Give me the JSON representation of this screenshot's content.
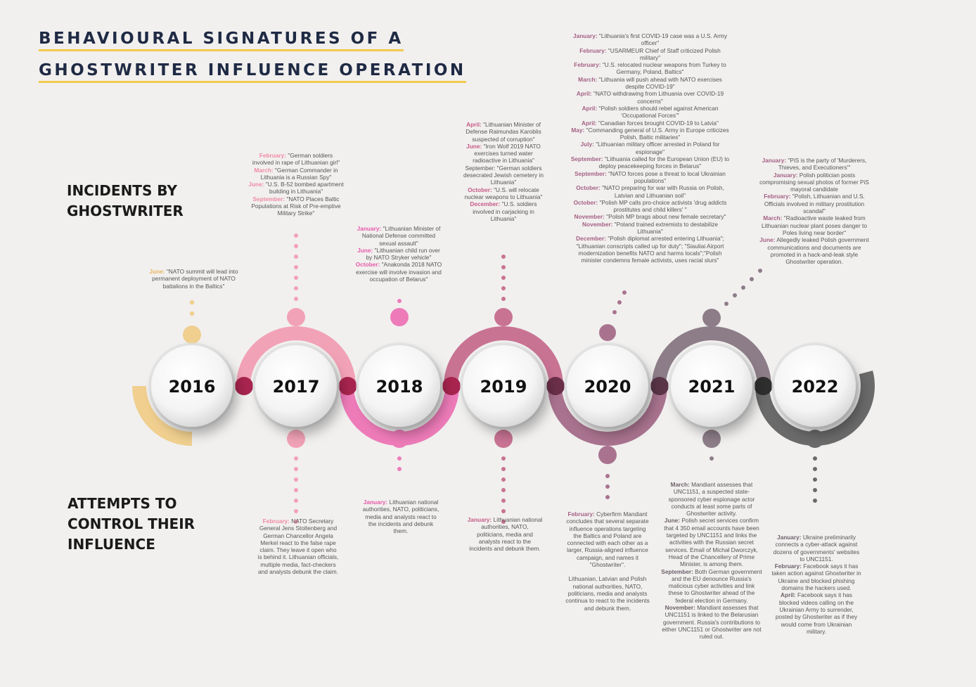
{
  "title": {
    "line1": "BEHAVIOURAL SIGNATURES OF A",
    "line2": "GHOSTWRITER INFLUENCE OPERATION"
  },
  "labels": {
    "incidents": "INCIDENTS BY\nGHOSTWRITER",
    "attempts": "ATTEMPTS TO\nCONTROL THEIR\nINFLUENCE"
  },
  "colors": {
    "2016": "#f0cf8f",
    "2017": "#f2a2b6",
    "2018": "#ee7bb9",
    "2019": "#c97393",
    "2020": "#a9738f",
    "2021": "#8d7d88",
    "2022": "#6a6a6a"
  },
  "years": [
    {
      "year": "2016",
      "incidents": [
        {
          "month": "June:",
          "text": " \"NATO summit will lead into permanent deployment of NATO battalions in the Baltics\""
        }
      ],
      "responses": []
    },
    {
      "year": "2017",
      "incidents": [
        {
          "month": "February:",
          "text": " \"German soldiers involved in rape of Lithuanian girl\""
        },
        {
          "month": "March:",
          "text": " \"German Commander in Lithuania is a Russian Spy\""
        },
        {
          "month": "June:",
          "text": " \"U.S. B-52 bombed apartment building in Lithuania\""
        },
        {
          "month": "September:",
          "text": " \"NATO Places Baltic Populations at Risk of Pre-emptive Military Strike\""
        }
      ],
      "responses": [
        {
          "month": "February:",
          "text": " NATO Secretary General Jens Stoltenberg and German Chancellor Angela Merkel react to the false rape claim. They leave it open who is behind it. Lithuanian officials, multiple media, fact-checkers and analysts debunk the claim."
        }
      ]
    },
    {
      "year": "2018",
      "incidents": [
        {
          "month": "January:",
          "text": " \"Lithuanian Minister of National Defense committed sexual assault\""
        },
        {
          "month": "June:",
          "text": " \"Lithuanian child run over by NATO Stryker vehicle\""
        },
        {
          "month": "October:",
          "text": " \"Anakonda 2018 NATO exercise will involve invasion and occupation of Belarus\""
        }
      ],
      "responses": [
        {
          "month": "January:",
          "text": " Lithuanian national authorities, NATO, politicians, media and analysts react to the incidents and debunk them."
        }
      ]
    },
    {
      "year": "2019",
      "incidents": [
        {
          "month": "April:",
          "text": " \"Lithuanian Minister of Defense Raimundas Karoblis suspected of corruption\""
        },
        {
          "month": "June:",
          "text": " \"Iron Wolf 2019 NATO exercises turned water radioactive in Lithuania\""
        },
        {
          "month": "",
          "text": "September: \"German soldiers desecrated Jewish cemetery in Lithuania\""
        },
        {
          "month": "October:",
          "text": " \"U.S. will relocate nuclear weapons to Lithuania\""
        },
        {
          "month": "December:",
          "text": " \"U.S. soldiers involved in carjacking in Lithuania\""
        }
      ],
      "responses": [
        {
          "month": "January:",
          "text": " Lithuanian national authorities, NATO, politicians, media and analysts react to the incidents and debunk them."
        }
      ]
    },
    {
      "year": "2020",
      "incidents": [
        {
          "month": "January:",
          "text": " \"Lithuania's first COVID-19 case was a U.S. Army officer\""
        },
        {
          "month": "February:",
          "text": " \"USARMEUR Chief of Staff criticized Polish military\""
        },
        {
          "month": "February:",
          "text": " \"U.S. relocated nuclear weapons from Turkey to Germany, Poland, Baltics\""
        },
        {
          "month": "March:",
          "text": " \"Lithuania will push ahead with NATO exercises despite COVID-19\""
        },
        {
          "month": "April:",
          "text": " \"NATO withdrawing from Lithuania over COVID-19 concerns\""
        },
        {
          "month": "April:",
          "text": " \"Polish soldiers should rebel against American 'Occupational Forces'\""
        },
        {
          "month": "April:",
          "text": " \"Canadian forces brought COVID-19 to Latvia\""
        },
        {
          "month": "May:",
          "text": " \"Commanding general of U.S. Army in Europe criticizes Polish, Baltic militaries\""
        },
        {
          "month": "July:",
          "text": " \"Lithuanian military officer arrested in Poland for espionage\""
        },
        {
          "month": "September:",
          "text": " \"Lithuania called for the European Union (EU) to deploy peacekeeping forces in Belarus\""
        },
        {
          "month": "September:",
          "text": " \"NATO forces pose a threat to local Ukrainian populations\""
        },
        {
          "month": "October:",
          "text": " \"NATO preparing for war with Russia on Polish, Latvian and Lithuanian soil\""
        },
        {
          "month": "October:",
          "text": " \"Polish MP calls pro-choice activists 'drug addicts prostitutes and child killers' \""
        },
        {
          "month": "November:",
          "text": " \"Polish MP brags about new female secretary\""
        },
        {
          "month": "November:",
          "text": " \"Poland trained extremists to destabilize Lithuania\""
        },
        {
          "month": "December:",
          "text": " \"Polish diplomat arrested entering Lithuania\"; \"Lithuanian conscripts called up for duty\"; \"Siauliai Airport modernization benefits NATO and harms locals\";\"Polish minister condemns female activists, uses racial slurs\""
        }
      ],
      "responses": [
        {
          "month": "February:",
          "text": " Cyberfirm Mandiant concludes that several separate influence operations targeting the Baltics and Poland are connected with each other as a larger, Russia-aligned influence campaign, and names it \"Ghostwriter\"."
        },
        {
          "month": "",
          "text": "Lithuanian, Latvian and Polish national authorities, NATO, politicians, media and analysts continua to react to the incidents and debunk them."
        }
      ]
    },
    {
      "year": "2021",
      "incidents": [
        {
          "month": "January:",
          "text": " \"PiS is the party of 'Murderers, Thieves, and Executioners'\""
        },
        {
          "month": "January:",
          "text": " Polish politician posts compromising sexual photos of former PiS mayoral candidate"
        },
        {
          "month": "February:",
          "text": " \"Polish, Lithuanian and U.S. Officials involved in military prostitution scandal\""
        },
        {
          "month": "March:",
          "text": " \"Radioactive waste leaked from Lithuanian nuclear plant poses danger to Poles living near border\""
        },
        {
          "month": "June:",
          "text": " Allegedly leaked Polish government communications and documents are promoted in a hack-and-leak style Ghostwriter operation."
        }
      ],
      "responses": [
        {
          "month": "March:",
          "text": " Mandiant assesses that UNC1151, a suspected state-sponsored cyber espionage actor conducts at least some parts of Ghostwriter activity."
        },
        {
          "month": "June:",
          "text": " Polish secret services confirm that 4 350 email accounts have been targeted by UNC1151 and links the activities with the Russian secret services. Email of Michał Dworczyk, Head of the Chancellery of Prime Minister, is among them."
        },
        {
          "month": "September:",
          "text": " Both German government and the EU denounce Russia's malicious cyber activities and link these to Ghostwriter ahead of the federal election in Germany."
        },
        {
          "month": "November:",
          "text": " Mandiant assesses that UNC1151 is linked to the Belarusian government. Russia's contributions to either UNC1151 or Ghostwriter are not ruled out."
        }
      ]
    },
    {
      "year": "2022",
      "incidents": [],
      "responses": [
        {
          "month": "January:",
          "text": " Ukraine preliminarily connects a cyber-attack against dozens of governments' websites to UNC1151."
        },
        {
          "month": "February:",
          "text": " Facebook says it has taken action against Ghostwriter in Ukraine and blocked phishing domains the hackers used."
        },
        {
          "month": "April:",
          "text": " Facebook says it has blocked videos calling on the Ukrainian Army to surrender, posted by Ghostwriter as if they would come from Ukrainian military."
        }
      ]
    }
  ]
}
